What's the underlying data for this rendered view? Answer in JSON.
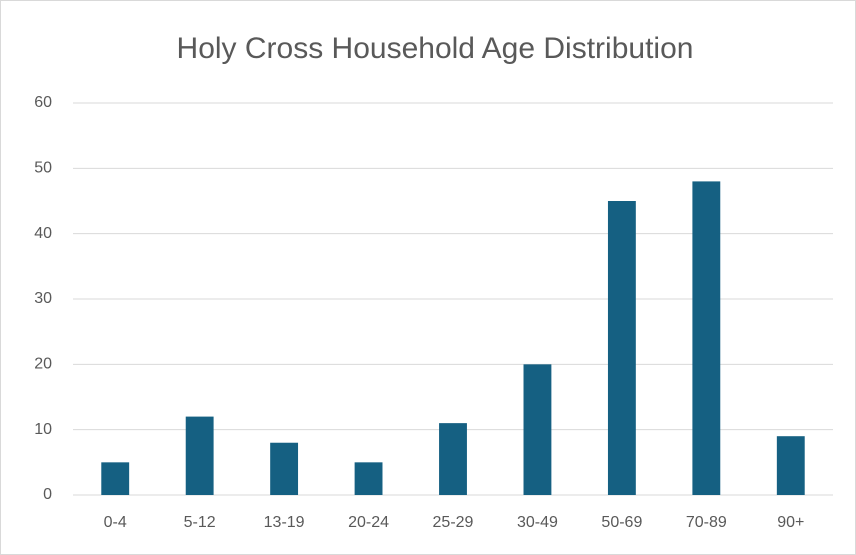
{
  "chart_data": {
    "type": "bar",
    "title": "Holy Cross Household Age Distribution",
    "categories": [
      "0-4",
      "5-12",
      "13-19",
      "20-24",
      "25-29",
      "30-49",
      "50-69",
      "70-89",
      "90+"
    ],
    "values": [
      5,
      12,
      8,
      5,
      11,
      20,
      45,
      48,
      9
    ],
    "color": "#156082",
    "ylim": [
      0,
      60
    ],
    "yticks": [
      0,
      10,
      20,
      30,
      40,
      50,
      60
    ],
    "grid": true
  }
}
